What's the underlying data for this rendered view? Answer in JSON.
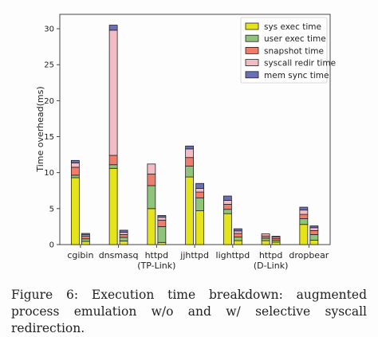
{
  "chart_data": {
    "type": "bar",
    "stacked": true,
    "ylabel": "Time overhead(ms)",
    "ylim": [
      0,
      32
    ],
    "yticks": [
      0,
      5,
      10,
      15,
      20,
      25,
      30
    ],
    "categories": [
      {
        "lines": [
          "cgibin"
        ]
      },
      {
        "lines": [
          "dnsmasq"
        ]
      },
      {
        "lines": [
          "httpd",
          "(TP-Link)"
        ]
      },
      {
        "lines": [
          "jjhttpd"
        ]
      },
      {
        "lines": [
          "lighttpd"
        ]
      },
      {
        "lines": [
          "httpd",
          "(D-Link)"
        ]
      },
      {
        "lines": [
          "dropbear"
        ]
      }
    ],
    "bar_pair_per_category": [
      "w/o",
      "w/"
    ],
    "series": [
      {
        "name": "sys exec time",
        "color": "#e5e31b",
        "values_wo": [
          9.3,
          10.6,
          5.0,
          9.4,
          4.3,
          0.55,
          2.8
        ],
        "values_w": [
          0.45,
          0.5,
          0.3,
          4.7,
          0.55,
          0.35,
          0.6
        ]
      },
      {
        "name": "user exec time",
        "color": "#90c47a",
        "values_wo": [
          0.35,
          0.5,
          3.2,
          1.5,
          0.6,
          0.35,
          0.8
        ],
        "values_w": [
          0.35,
          0.5,
          2.2,
          1.8,
          0.5,
          0.25,
          0.8
        ]
      },
      {
        "name": "snapshot time",
        "color": "#ee7d6d",
        "values_wo": [
          1.1,
          1.3,
          1.6,
          1.2,
          0.7,
          0.3,
          0.6
        ],
        "values_w": [
          0.35,
          0.4,
          0.9,
          0.8,
          0.5,
          0.25,
          0.55
        ]
      },
      {
        "name": "syscall redir time",
        "color": "#f2bcc4",
        "values_wo": [
          0.6,
          17.4,
          1.4,
          1.2,
          0.55,
          0.3,
          0.6
        ],
        "values_w": [
          0.2,
          0.3,
          0.4,
          0.5,
          0.35,
          0.2,
          0.4
        ]
      },
      {
        "name": "mem sync time",
        "color": "#6a6fb6",
        "values_wo": [
          0.35,
          0.7,
          0.0,
          0.4,
          0.6,
          0.0,
          0.4
        ],
        "values_w": [
          0.2,
          0.3,
          0.25,
          0.7,
          0.3,
          0.1,
          0.25
        ]
      }
    ],
    "legend_position": "top-right",
    "grid": false
  },
  "caption": "Figure 6: Execution time breakdown: augmented process emulation w/o and w/ selective syscall redirection."
}
